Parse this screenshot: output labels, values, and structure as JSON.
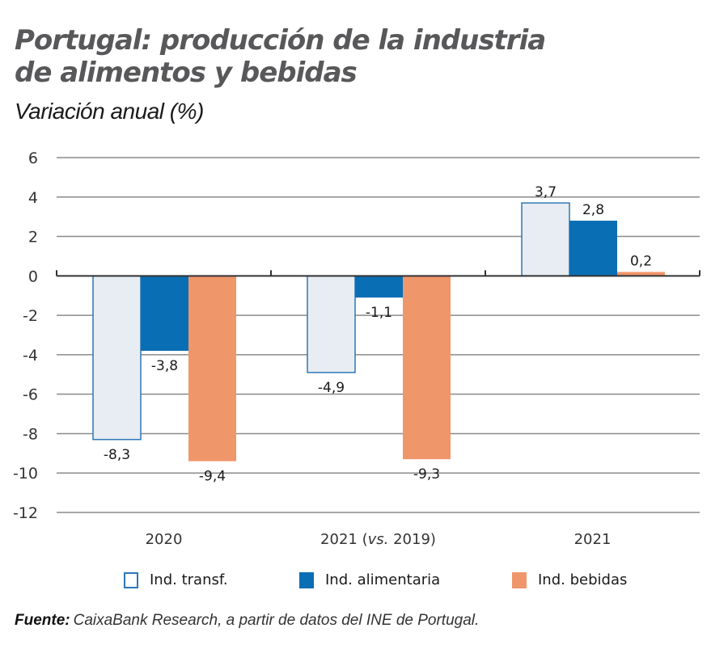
{
  "title_line1": "Portugal: producción de la industria",
  "title_line2": "de alimentos y bebidas",
  "subtitle": "Variación anual (%)",
  "source_label": "Fuente:",
  "source_text": "CaixaBank Research, a partir de datos del INE de Portugal.",
  "colors": {
    "transf_fill": "#e7edf2",
    "transf_stroke": "#2f77b8",
    "alimentaria": "#0a6eb4",
    "bebidas": "#f0966b",
    "grid": "#8a8a8a",
    "axis": "#333333"
  },
  "chart_data": {
    "type": "bar",
    "title": "Portugal: producción de la industria de alimentos y bebidas",
    "subtitle": "Variación anual (%)",
    "xlabel": "",
    "ylabel": "",
    "categories": [
      "2020",
      "2021 (vs. 2019)",
      "2021"
    ],
    "series": [
      {
        "name": "Ind. transf.",
        "values": [
          -8.3,
          -4.9,
          3.7
        ],
        "labels": [
          "-8,3",
          "-4,9",
          "3,7"
        ]
      },
      {
        "name": "Ind. alimentaria",
        "values": [
          -3.8,
          -1.1,
          2.8
        ],
        "labels": [
          "-3,8",
          "-1,1",
          "2,8"
        ]
      },
      {
        "name": "Ind. bebidas",
        "values": [
          -9.4,
          -9.3,
          0.2
        ],
        "labels": [
          "-9,4",
          "-9,3",
          "0,2"
        ]
      }
    ],
    "ylim": [
      -12,
      6
    ],
    "yticks": [
      6,
      4,
      2,
      0,
      -2,
      -4,
      -6,
      -8,
      -10,
      -12
    ],
    "ytick_labels": [
      "6",
      "4",
      "2",
      "0",
      "-2",
      "-4",
      "-6",
      "-8",
      "-10",
      "-12"
    ],
    "grid": true,
    "legend_position": "bottom"
  },
  "legend": [
    {
      "label": "Ind. transf."
    },
    {
      "label": "Ind. alimentaria"
    },
    {
      "label": "Ind. bebidas"
    }
  ]
}
